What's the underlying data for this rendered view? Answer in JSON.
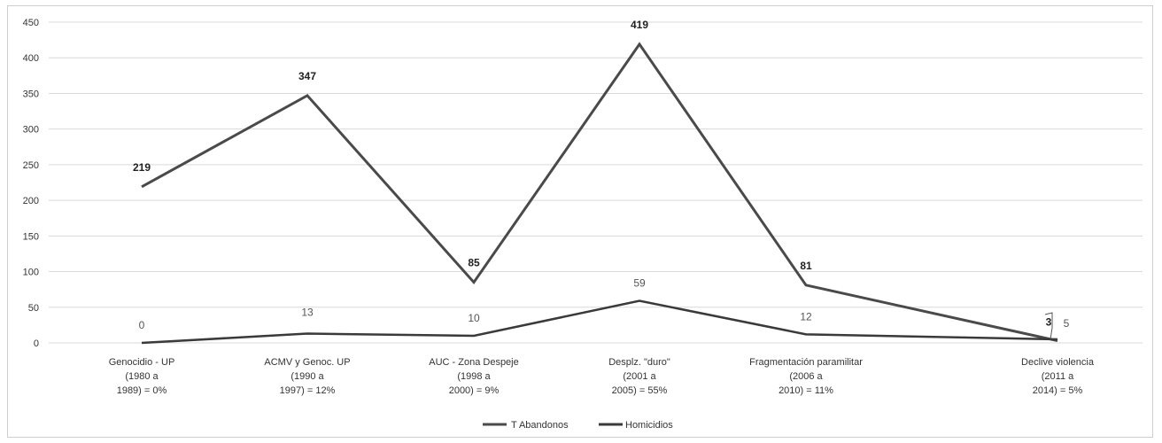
{
  "chart_data": {
    "type": "line",
    "categories": [
      [
        "Genocidio - UP",
        "(1980 a",
        "1989) = 0%"
      ],
      [
        "ACMV  y Genoc. UP",
        "(1990 a",
        "1997) = 12%"
      ],
      [
        "AUC - Zona Despeje",
        "(1998 a",
        "2000) = 9%"
      ],
      [
        "Desplz. \"duro\"",
        "(2001 a",
        "2005) = 55%"
      ],
      [
        "Fragmentación paramilitar",
        "(2006 a",
        "2010) = 11%"
      ],
      [
        "Declive violencia",
        "(2011 a",
        "2014) = 5%"
      ]
    ],
    "series": [
      {
        "name": "T Abandonos",
        "values": [
          219,
          347,
          85,
          419,
          81,
          3
        ],
        "color": "#4a4a4a"
      },
      {
        "name": "Homicidios",
        "values": [
          0,
          13,
          10,
          59,
          12,
          5
        ],
        "color": "#3a3a3a"
      }
    ],
    "ylim": [
      0,
      450
    ],
    "yticks": [
      0,
      50,
      100,
      150,
      200,
      250,
      300,
      350,
      400,
      450
    ],
    "grid": true,
    "legend": "bottom"
  }
}
